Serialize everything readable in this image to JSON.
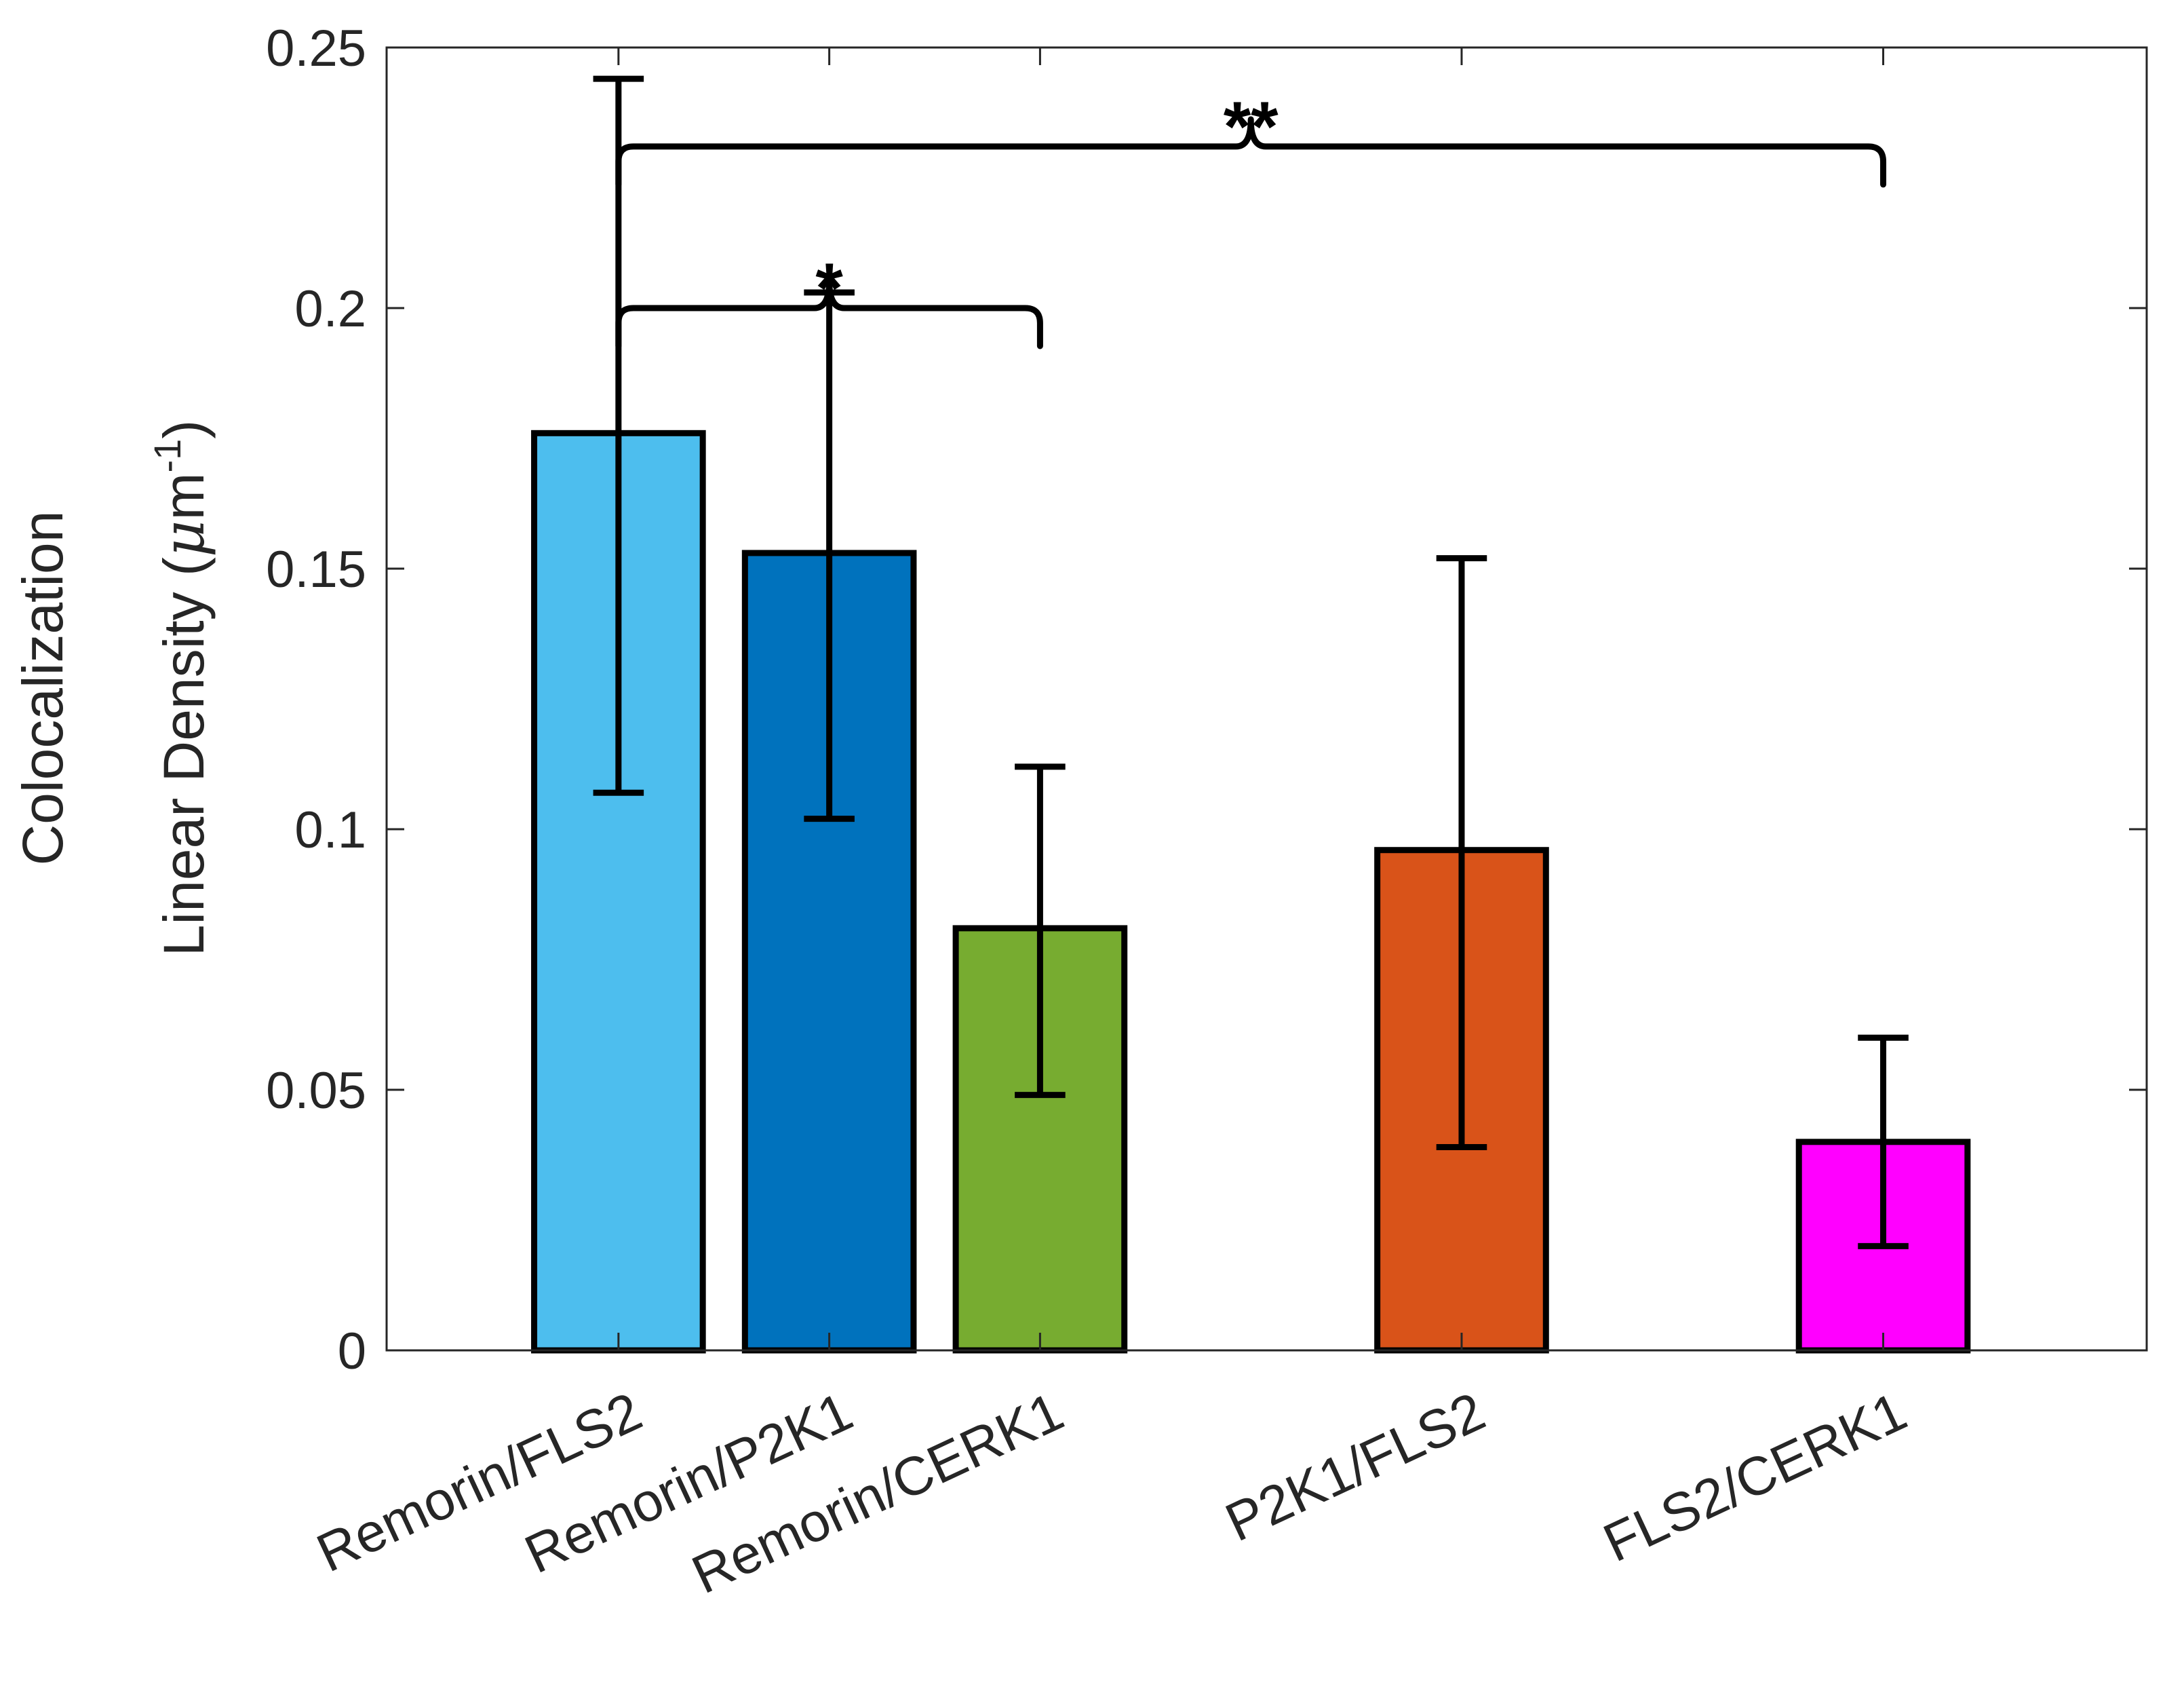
{
  "chart_data": {
    "type": "bar",
    "categories": [
      "Remorin/FLS2",
      "Remorin/P2K1",
      "Remorin/CERK1",
      "P2K1/FLS2",
      "FLS2/CERK1"
    ],
    "category_positions": [
      1,
      2,
      3,
      5,
      7
    ],
    "values": [
      0.176,
      0.153,
      0.081,
      0.096,
      0.04
    ],
    "error_low": [
      0.107,
      0.102,
      0.049,
      0.039,
      0.02
    ],
    "error_high": [
      0.244,
      0.203,
      0.112,
      0.152,
      0.06
    ],
    "colors": [
      "#4DBEEE",
      "#0072BD",
      "#77AC30",
      "#D95319",
      "#FF00FF"
    ],
    "ylim": [
      0,
      0.25
    ],
    "xlim": [
      -0.1,
      8.25
    ],
    "yticks": [
      0,
      0.05,
      0.1,
      0.15,
      0.2,
      0.25
    ],
    "ytick_labels": [
      "0",
      "0.05",
      "0.1",
      "0.15",
      "0.2",
      "0.25"
    ],
    "ylabel_line1": "Colocalization",
    "ylabel_line2_prefix": "Linear Density (",
    "ylabel_mu": "μ",
    "ylabel_unit": "m",
    "ylabel_exponent": "-1",
    "ylabel_close": ")",
    "xlabel": "",
    "title": "",
    "significance": [
      {
        "from": 1,
        "to": 3,
        "y": 0.2,
        "label": "*"
      },
      {
        "from": 1,
        "to": 7,
        "y": 0.231,
        "label": "**"
      }
    ]
  }
}
